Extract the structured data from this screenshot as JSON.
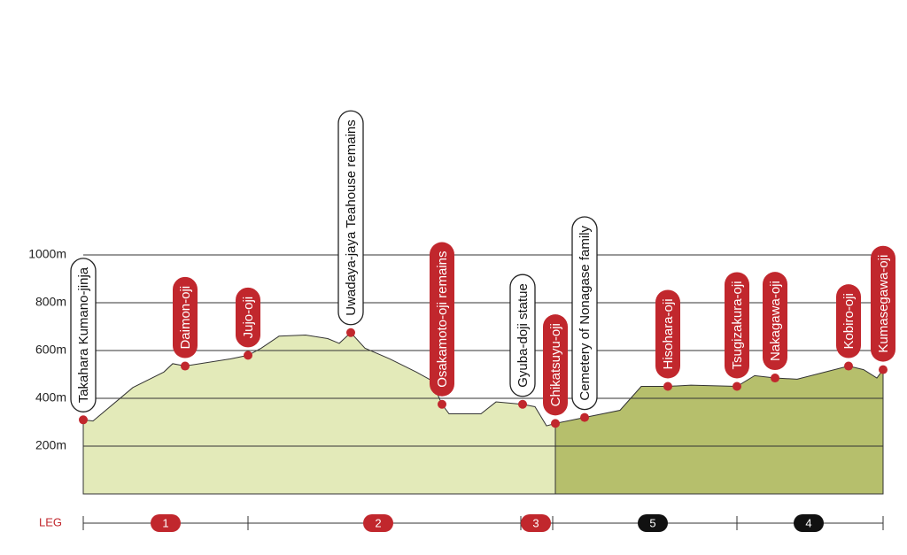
{
  "chart_data": {
    "type": "area",
    "ylim": [
      0,
      1000
    ],
    "yticks": [
      {
        "value": 200,
        "label": "200m"
      },
      {
        "value": 400,
        "label": "400m"
      },
      {
        "value": 600,
        "label": "600m"
      },
      {
        "value": 800,
        "label": "800m"
      },
      {
        "value": 1000,
        "label": "1000m"
      }
    ],
    "grid": true,
    "series": [
      {
        "color": "#e3eab9",
        "values": [
          310,
          305,
          445,
          510,
          545,
          535,
          565,
          580,
          610,
          660,
          665,
          650,
          630,
          675,
          610,
          565,
          510,
          475,
          375,
          335,
          335,
          385,
          375,
          365,
          285,
          295
        ]
      },
      {
        "color": "#b6bf6c",
        "values": [
          295,
          320,
          350,
          450,
          450,
          455,
          450,
          495,
          485,
          480,
          535,
          520,
          485,
          520
        ]
      }
    ],
    "waypoints": [
      {
        "label": "Takahara Kumano-jinja",
        "value": 310,
        "style": "outline"
      },
      {
        "label": "Daimon-oji",
        "value": 535,
        "style": "filled"
      },
      {
        "label": "Jujo-oji",
        "value": 580,
        "style": "filled"
      },
      {
        "label": "Uwadaya-jaya Teahouse remains",
        "value": 675,
        "style": "outline"
      },
      {
        "label": "Osakamoto-oji remains",
        "value": 375,
        "style": "filled"
      },
      {
        "label": "Gyuba-doji statue",
        "value": 375,
        "style": "outline"
      },
      {
        "label": "Chikatsuyu-oji",
        "value": 295,
        "style": "filled"
      },
      {
        "label": "Cemetery of Nonagase family",
        "value": 320,
        "style": "outline"
      },
      {
        "label": "Hisohara-oji",
        "value": 450,
        "style": "filled"
      },
      {
        "label": "Tsugizakura-oji",
        "value": 450,
        "style": "filled"
      },
      {
        "label": "Nakagawa-oji",
        "value": 485,
        "style": "filled"
      },
      {
        "label": "Kobiro-oji",
        "value": 535,
        "style": "filled"
      },
      {
        "label": "Kumasegawa-oji",
        "value": 520,
        "style": "filled"
      }
    ],
    "legend_title": "LEG",
    "legs": [
      {
        "label": "1",
        "color": "#c1272d"
      },
      {
        "label": "2",
        "color": "#c1272d"
      },
      {
        "label": "3",
        "color": "#c1272d"
      },
      {
        "label": "5",
        "color": "#111111"
      },
      {
        "label": "4",
        "color": "#111111"
      }
    ]
  }
}
